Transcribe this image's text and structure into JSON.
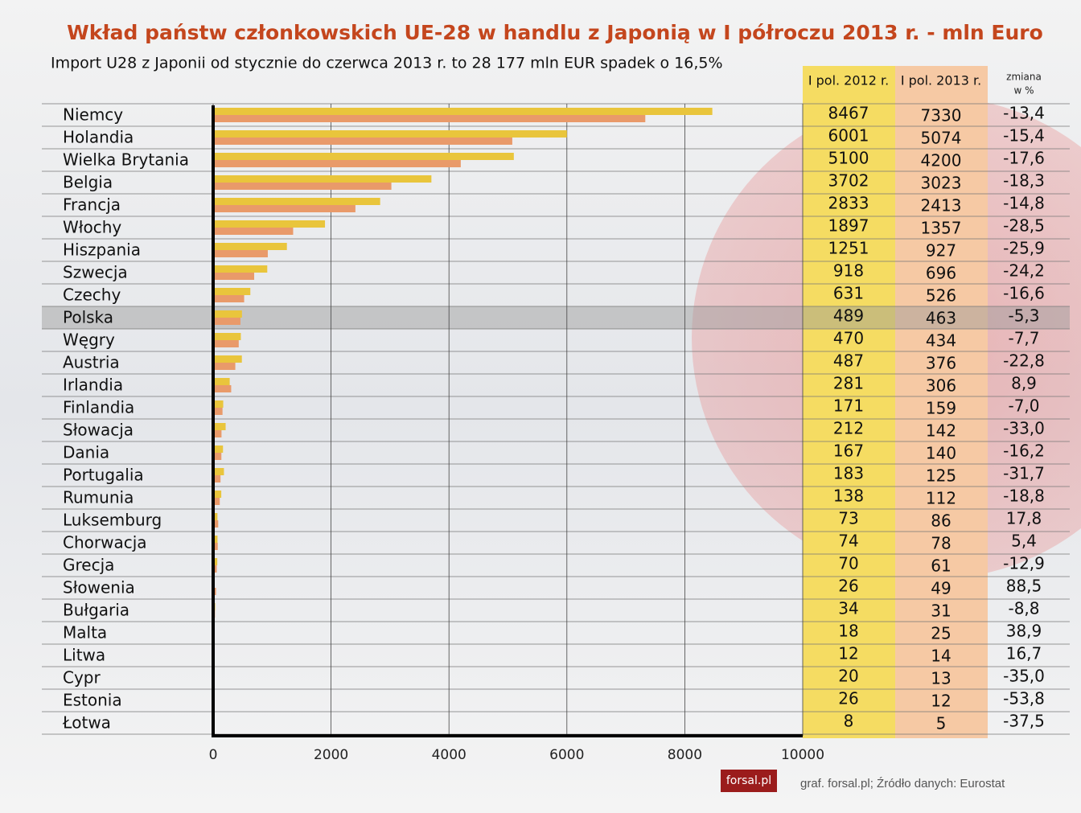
{
  "chart_data": {
    "type": "bar",
    "orientation": "horizontal",
    "title": "Wkład państw członkowskich UE-28 w handlu z Japonią w I półroczu 2013 r. - mln Euro",
    "subtitle": "Import U28 z Japonii od stycznie  do czerwca 2013 r. to 28 177 mln EUR spadek o 16,5%",
    "categories": [
      "Niemcy",
      "Holandia",
      "Wielka Brytania",
      "Belgia",
      "Francja",
      "Włochy",
      "Hiszpania",
      "Szwecja",
      "Czechy",
      "Polska",
      "Węgry",
      "Austria",
      "Irlandia",
      "Finlandia",
      "Słowacja",
      "Dania",
      "Portugalia",
      "Rumunia",
      "Luksemburg",
      "Chorwacja",
      "Grecja",
      "Słowenia",
      "Bułgaria",
      "Malta",
      "Litwa",
      "Cypr",
      "Estonia",
      "Łotwa"
    ],
    "series": [
      {
        "name": "I pol. 2012 r.",
        "color": "#e9c53c",
        "values": [
          8467,
          6001,
          5100,
          3702,
          2833,
          1897,
          1251,
          918,
          631,
          489,
          470,
          487,
          281,
          171,
          212,
          167,
          183,
          138,
          73,
          74,
          70,
          26,
          34,
          18,
          12,
          20,
          26,
          8
        ]
      },
      {
        "name": "I pol. 2013 r.",
        "color": "#e99a6a",
        "values": [
          7330,
          5074,
          4200,
          3023,
          2413,
          1357,
          927,
          696,
          526,
          463,
          434,
          376,
          306,
          159,
          142,
          140,
          125,
          112,
          86,
          78,
          61,
          49,
          31,
          25,
          14,
          13,
          12,
          5
        ]
      }
    ],
    "change": {
      "header": [
        "zmiana",
        "w %"
      ],
      "values": [
        -13.4,
        -15.4,
        -17.6,
        -18.3,
        -14.8,
        -28.5,
        -25.9,
        -24.2,
        -16.6,
        -5.3,
        -7.7,
        -22.8,
        8.9,
        -7.0,
        -33.0,
        -16.2,
        -31.7,
        -18.8,
        17.8,
        5.4,
        -12.9,
        88.5,
        -8.8,
        38.9,
        16.7,
        -35.0,
        -53.8,
        -37.5
      ],
      "value_labels": [
        "-13,4",
        "-15,4",
        "-17,6",
        "-18,3",
        "-14,8",
        "-28,5",
        "-25,9",
        "-24,2",
        "-16,6",
        "-5,3",
        "-7,7",
        "-22,8",
        "8,9",
        "-7,0",
        "-33,0",
        "-16,2",
        "-31,7",
        "-18,8",
        "17,8",
        "5,4",
        "-12,9",
        "88,5",
        "-8,8",
        "38,9",
        "16,7",
        "-35,0",
        "-53,8",
        "-37,5"
      ]
    },
    "highlight_index": 9,
    "xlim": [
      0,
      10000
    ],
    "xticks": [
      0,
      2000,
      4000,
      6000,
      8000,
      10000
    ],
    "grid": true,
    "logo": "forsal.pl",
    "source": "graf. forsal.pl; Źródło danych: Eurostat"
  }
}
